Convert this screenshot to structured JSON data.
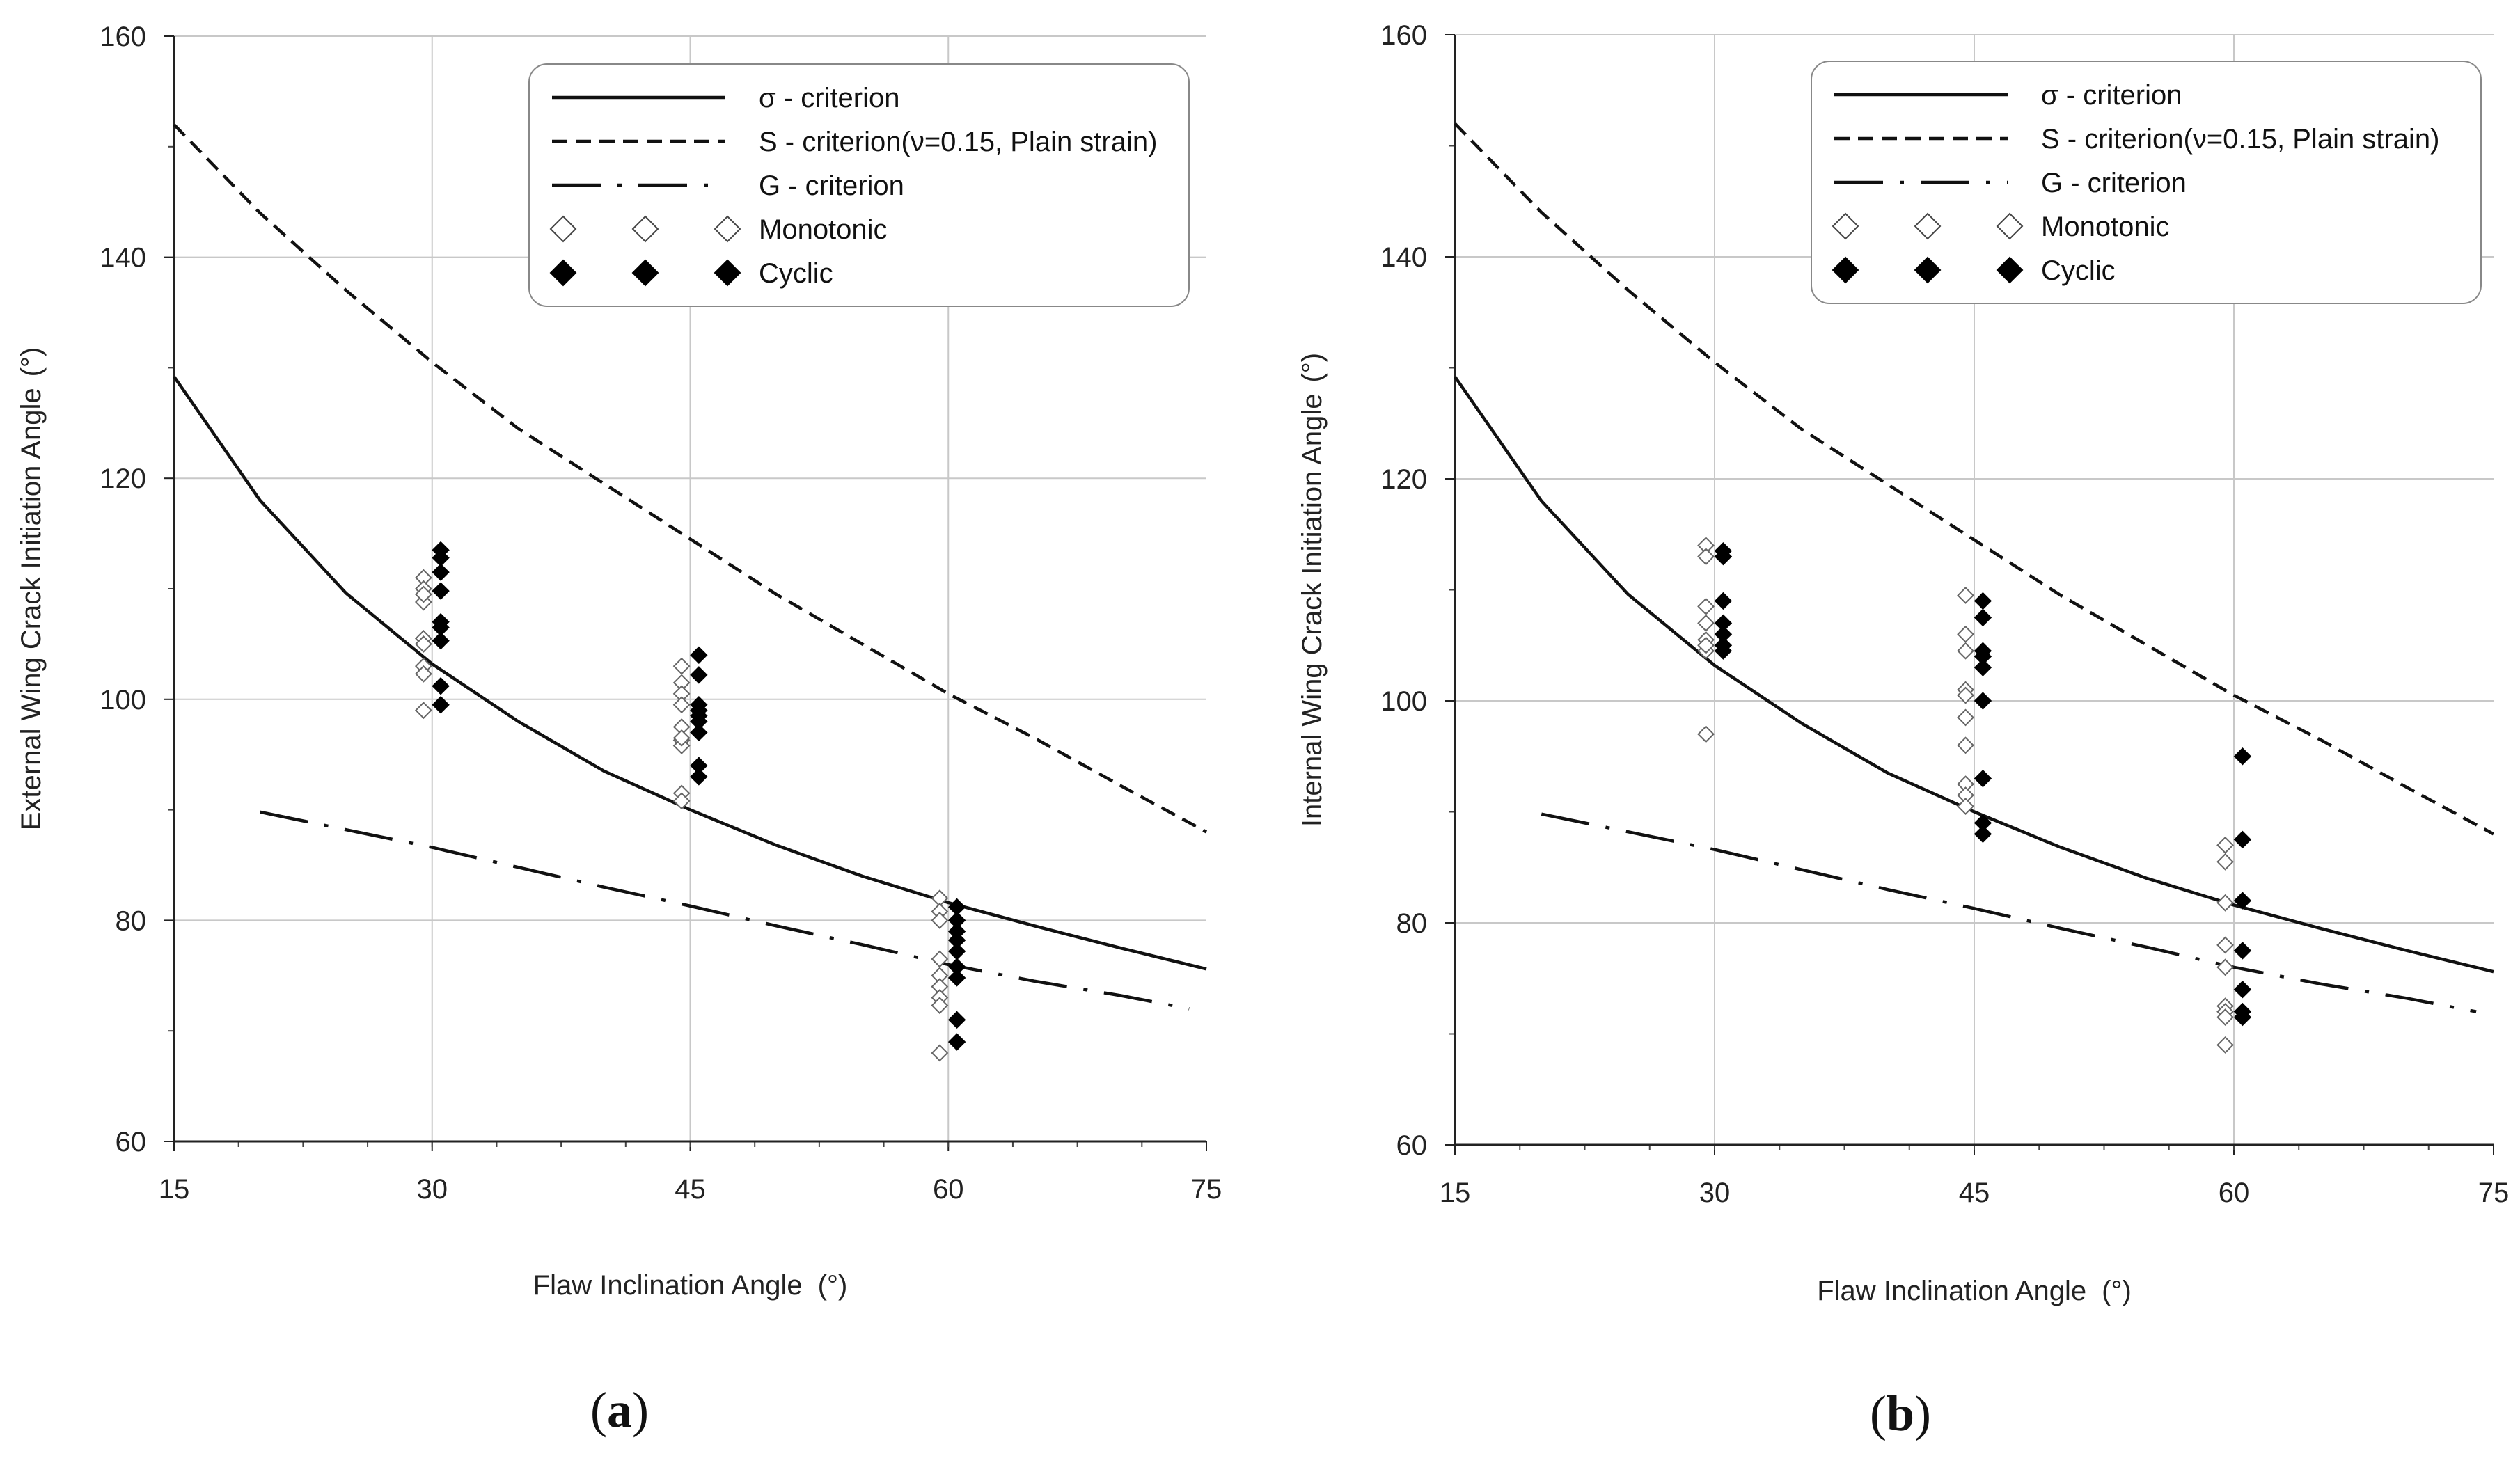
{
  "chart_data": [
    {
      "type": "scatter",
      "panel": "(a)",
      "panel_letter": "a",
      "xlabel": "Flaw Inclination Angle",
      "xlabel_unit": "(°)",
      "ylabel": "External Wing Crack Initiation Angle",
      "ylabel_unit": "(°)",
      "xlim": [
        15,
        75
      ],
      "ylim": [
        60,
        160
      ],
      "xticks": [
        15,
        30,
        45,
        60,
        75
      ],
      "yticks": [
        60,
        80,
        100,
        120,
        140,
        160
      ],
      "grid": true,
      "legend": {
        "placement": "top-right",
        "entries": [
          "σ - criterion",
          "S - criterion(ν=0.15, Plain strain)",
          "G - criterion",
          "Monotonic",
          "Cyclic"
        ]
      },
      "series": [
        {
          "name": "σ - criterion",
          "kind": "line",
          "style": "solid",
          "x": [
            15,
            20,
            25,
            30,
            35,
            40,
            45,
            50,
            55,
            60,
            65,
            70,
            75
          ],
          "y": [
            129.2,
            118.0,
            109.6,
            103.2,
            98.0,
            93.5,
            90.0,
            86.8,
            84.0,
            81.6,
            79.5,
            77.5,
            75.6
          ]
        },
        {
          "name": "S - criterion(ν=0.15, Plain strain)",
          "kind": "line",
          "style": "dashed",
          "x": [
            15,
            20,
            25,
            30,
            35,
            40,
            45,
            50,
            55,
            60,
            65,
            70,
            75
          ],
          "y": [
            152.0,
            144.0,
            137.0,
            130.5,
            124.5,
            119.5,
            114.5,
            109.5,
            105.0,
            100.5,
            96.5,
            92.2,
            88.0
          ]
        },
        {
          "name": "G - criterion",
          "kind": "line",
          "style": "dash-dot",
          "x": [
            20,
            25,
            30,
            35,
            40,
            45,
            50,
            55,
            60,
            65,
            70,
            74
          ],
          "y": [
            89.8,
            88.2,
            86.6,
            84.8,
            83.0,
            81.3,
            79.5,
            77.8,
            76.0,
            74.5,
            73.2,
            72.0
          ]
        },
        {
          "name": "Monotonic",
          "kind": "scatter",
          "marker": "open-diamond",
          "x": [
            29.5,
            29.5,
            29.5,
            29.5,
            29.5,
            29.5,
            29.5,
            29.5,
            29.5,
            44.5,
            44.5,
            44.5,
            44.5,
            44.5,
            44.5,
            44.5,
            44.5,
            44.5,
            44.5,
            59.5,
            59.5,
            59.5,
            59.5,
            59.5,
            59.5,
            59.5,
            59.5,
            59.5
          ],
          "y": [
            111.0,
            110.0,
            108.8,
            105.5,
            105.0,
            103.0,
            102.3,
            99.0,
            109.5,
            103.0,
            101.5,
            100.5,
            99.5,
            97.5,
            96.3,
            95.8,
            96.5,
            91.5,
            90.8,
            82.0,
            80.8,
            80.0,
            76.5,
            75.0,
            74.0,
            73.0,
            72.3,
            68.0
          ]
        },
        {
          "name": "Cyclic",
          "kind": "scatter",
          "marker": "filled-diamond",
          "x": [
            30.5,
            30.5,
            30.5,
            30.5,
            30.5,
            30.5,
            30.5,
            30.5,
            30.5,
            45.5,
            45.5,
            45.5,
            45.5,
            45.5,
            45.5,
            45.5,
            45.5,
            45.5,
            60.5,
            60.5,
            60.5,
            60.5,
            60.5,
            60.5,
            60.5,
            60.5,
            60.5
          ],
          "y": [
            113.5,
            112.8,
            111.5,
            109.8,
            106.5,
            105.3,
            101.2,
            99.5,
            107.0,
            104.0,
            102.2,
            99.5,
            99.0,
            98.0,
            97.0,
            94.0,
            93.0,
            98.5,
            81.2,
            80.0,
            78.2,
            77.2,
            75.8,
            74.8,
            71.0,
            69.0,
            79.0
          ]
        }
      ]
    },
    {
      "type": "scatter",
      "panel": "(b)",
      "panel_letter": "b",
      "xlabel": "Flaw Inclination Angle",
      "xlabel_unit": "(°)",
      "ylabel": "Internal Wing Crack Initiation Angle",
      "ylabel_unit": "(°)",
      "xlim": [
        15,
        75
      ],
      "ylim": [
        60,
        160
      ],
      "xticks": [
        15,
        30,
        45,
        60,
        75
      ],
      "yticks": [
        60,
        80,
        100,
        120,
        140,
        160
      ],
      "grid": true,
      "legend": {
        "placement": "top-right",
        "entries": [
          "σ - criterion",
          "S - criterion(ν=0.15, Plain strain)",
          "G - criterion",
          "Monotonic",
          "Cyclic"
        ]
      },
      "series": [
        {
          "name": "σ - criterion",
          "kind": "line",
          "style": "solid",
          "x": [
            15,
            20,
            25,
            30,
            35,
            40,
            45,
            50,
            55,
            60,
            65,
            70,
            75
          ],
          "y": [
            129.2,
            118.0,
            109.6,
            103.2,
            98.0,
            93.5,
            90.0,
            86.8,
            84.0,
            81.6,
            79.5,
            77.5,
            75.6
          ]
        },
        {
          "name": "S - criterion(ν=0.15, Plain strain)",
          "kind": "line",
          "style": "dashed",
          "x": [
            15,
            20,
            25,
            30,
            35,
            40,
            45,
            50,
            55,
            60,
            65,
            70,
            75
          ],
          "y": [
            152.0,
            144.0,
            137.0,
            130.5,
            124.5,
            119.5,
            114.5,
            109.5,
            105.0,
            100.5,
            96.5,
            92.2,
            88.0
          ]
        },
        {
          "name": "G - criterion",
          "kind": "line",
          "style": "dash-dot",
          "x": [
            20,
            25,
            30,
            35,
            40,
            45,
            50,
            55,
            60,
            65,
            70,
            74
          ],
          "y": [
            89.8,
            88.2,
            86.6,
            84.8,
            83.0,
            81.3,
            79.5,
            77.8,
            76.0,
            74.5,
            73.2,
            72.0
          ]
        },
        {
          "name": "Monotonic",
          "kind": "scatter",
          "marker": "open-diamond",
          "x": [
            29.5,
            29.5,
            29.5,
            29.5,
            29.5,
            29.5,
            29.5,
            29.5,
            44.5,
            44.5,
            44.5,
            44.5,
            44.5,
            44.5,
            44.5,
            44.5,
            44.5,
            44.5,
            59.5,
            59.5,
            59.5,
            59.5,
            59.5,
            59.5,
            59.5,
            59.5,
            59.5
          ],
          "y": [
            114.0,
            113.0,
            108.5,
            107.0,
            105.5,
            104.5,
            105.0,
            97.0,
            109.5,
            106.0,
            104.5,
            101.0,
            100.5,
            98.5,
            96.0,
            92.5,
            91.5,
            90.5,
            87.0,
            85.5,
            81.8,
            78.0,
            76.0,
            72.5,
            72.0,
            71.5,
            69.0
          ]
        },
        {
          "name": "Cyclic",
          "kind": "scatter",
          "marker": "filled-diamond",
          "x": [
            30.5,
            30.5,
            30.5,
            30.5,
            30.5,
            30.5,
            30.5,
            45.5,
            45.5,
            45.5,
            45.5,
            45.5,
            45.5,
            45.5,
            45.5,
            45.5,
            60.5,
            60.5,
            60.5,
            60.5,
            60.5,
            60.5,
            60.5
          ],
          "y": [
            113.5,
            109.0,
            107.0,
            106.0,
            105.0,
            104.5,
            113.0,
            109.0,
            107.5,
            104.5,
            103.0,
            100.0,
            93.0,
            89.0,
            88.0,
            104.0,
            95.0,
            87.5,
            82.0,
            77.5,
            74.0,
            72.0,
            71.5
          ]
        }
      ]
    }
  ]
}
